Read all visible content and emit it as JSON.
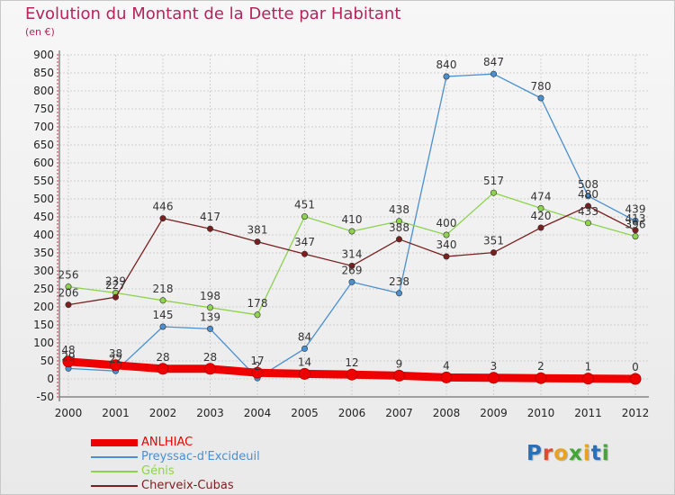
{
  "header": {
    "title": "Evolution du Montant de la Dette par Habitant",
    "unit": "(en €)"
  },
  "logo": {
    "letters": [
      "P",
      "r",
      "o",
      "x",
      "i",
      "t",
      "i"
    ],
    "colors": [
      "#2b6fb5",
      "#e0492c",
      "#e8a21c",
      "#43a538",
      "#e8a21c",
      "#2b6fb5",
      "#43a538"
    ]
  },
  "chart_data": {
    "type": "line",
    "title": "Evolution du Montant de la Dette par Habitant",
    "subtitle": "(en €)",
    "x": [
      "2000",
      "2001",
      "2002",
      "2003",
      "2004",
      "2005",
      "2006",
      "2007",
      "2008",
      "2009",
      "2010",
      "2011",
      "2012"
    ],
    "ylim": [
      -50,
      900
    ],
    "yticks": [
      -50,
      0,
      50,
      100,
      150,
      200,
      250,
      300,
      350,
      400,
      450,
      500,
      550,
      600,
      650,
      700,
      750,
      800,
      850,
      900
    ],
    "grid": true,
    "legend_position": "bottom-left",
    "series": [
      {
        "name": "ANLHIAC",
        "color": "#ee0000",
        "values": [
          48,
          38,
          28,
          28,
          17,
          14,
          12,
          9,
          4,
          3,
          2,
          1,
          0
        ],
        "labels": [
          "48",
          "38",
          "28",
          "28",
          "17",
          "14",
          "12",
          "9",
          "4",
          "3",
          "2",
          "1",
          "0"
        ]
      },
      {
        "name": "Preyssac-d'Excideuil",
        "color": "#4a8fd0",
        "values": [
          29,
          22,
          145,
          139,
          2,
          84,
          269,
          238,
          840,
          847,
          780,
          508,
          439
        ],
        "labels": [
          "29",
          "22",
          "145",
          "139",
          "2",
          "84",
          "269",
          "238",
          "840",
          "847",
          "780",
          "508",
          "439"
        ]
      },
      {
        "name": "Génis",
        "color": "#8dd34e",
        "values": [
          256,
          239,
          218,
          198,
          178,
          451,
          410,
          438,
          400,
          517,
          474,
          433,
          396
        ],
        "labels": [
          "256",
          "239",
          "218",
          "198",
          "178",
          "451",
          "410",
          "438",
          "400",
          "517",
          "474",
          "433",
          "396"
        ]
      },
      {
        "name": "Cherveix-Cubas",
        "color": "#7a1f1f",
        "values": [
          206,
          227,
          446,
          417,
          381,
          347,
          314,
          388,
          340,
          351,
          420,
          480,
          413
        ],
        "labels": [
          "206",
          "227",
          "446",
          "417",
          "381",
          "347",
          "314",
          "388",
          "340",
          "351",
          "420",
          "480",
          "413"
        ]
      }
    ]
  }
}
